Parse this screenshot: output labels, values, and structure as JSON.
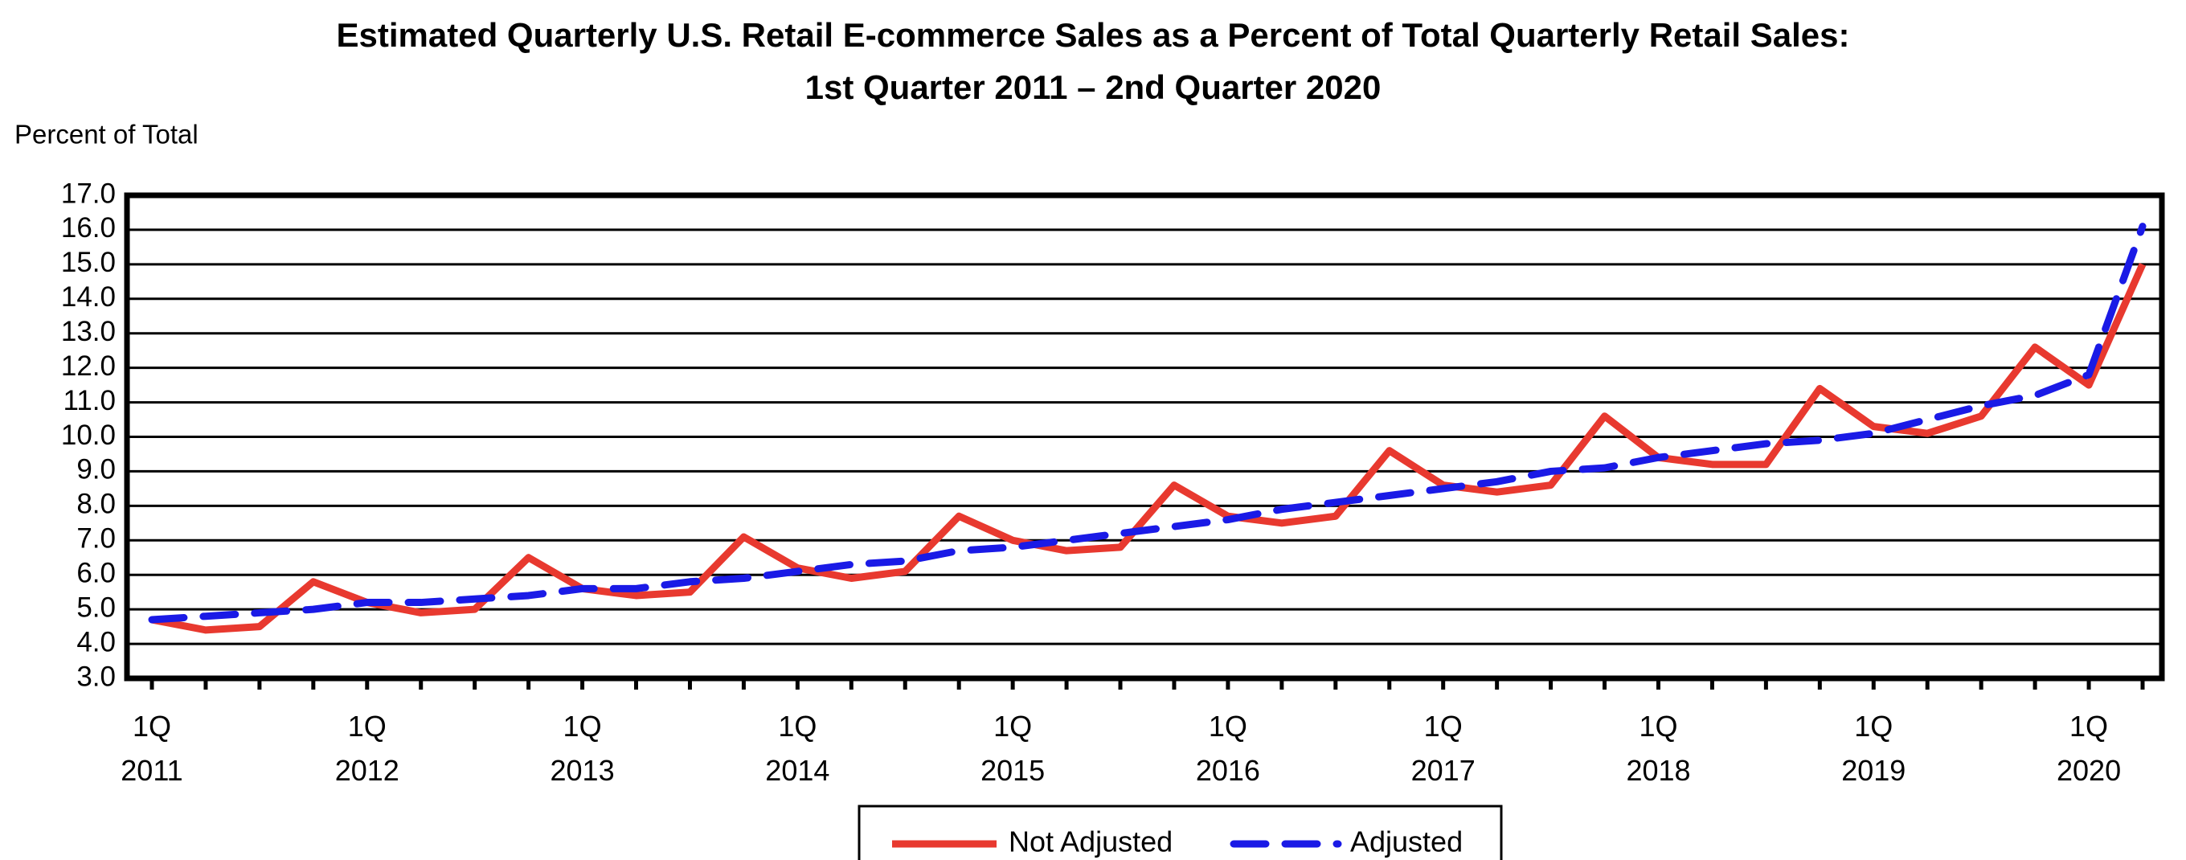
{
  "chart_data": {
    "type": "line",
    "title": "Estimated Quarterly U.S. Retail E-commerce Sales as a Percent of Total Quarterly Retail Sales:",
    "subtitle": "1st Quarter 2011 – 2nd Quarter 2020",
    "y_label": "Percent of Total",
    "categories": [
      "1Q 2011",
      null,
      null,
      null,
      "1Q 2012",
      null,
      null,
      null,
      "1Q 2013",
      null,
      null,
      null,
      "1Q 2014",
      null,
      null,
      null,
      "1Q 2015",
      null,
      null,
      null,
      "1Q 2016",
      null,
      null,
      null,
      "1Q 2017",
      null,
      null,
      null,
      "1Q 2018",
      null,
      null,
      null,
      "1Q 2019",
      null,
      null,
      null,
      "1Q 2020",
      null
    ],
    "series": [
      {
        "name": "Not Adjusted",
        "color": "#e8392f",
        "dashed": false,
        "values": [
          4.7,
          4.4,
          4.5,
          5.8,
          5.2,
          4.9,
          5.0,
          6.5,
          5.6,
          5.4,
          5.5,
          7.1,
          6.2,
          5.9,
          6.1,
          7.7,
          7.0,
          6.7,
          6.8,
          8.6,
          7.7,
          7.5,
          7.7,
          9.6,
          8.6,
          8.4,
          8.6,
          10.6,
          9.4,
          9.2,
          9.2,
          11.4,
          10.3,
          10.1,
          10.6,
          12.6,
          11.5,
          15.0
        ]
      },
      {
        "name": "Adjusted",
        "color": "#1a1ae6",
        "dashed": true,
        "values": [
          4.7,
          4.8,
          4.9,
          5.0,
          5.2,
          5.2,
          5.3,
          5.4,
          5.6,
          5.6,
          5.8,
          5.9,
          6.1,
          6.3,
          6.4,
          6.7,
          6.8,
          7.0,
          7.2,
          7.4,
          7.6,
          7.9,
          8.1,
          8.3,
          8.5,
          8.7,
          9.0,
          9.1,
          9.4,
          9.6,
          9.8,
          9.9,
          10.1,
          10.5,
          10.9,
          11.2,
          11.8,
          16.1
        ]
      }
    ],
    "ylim": [
      3,
      17
    ],
    "yticks": [
      {
        "value": 3,
        "label": "3.0"
      },
      {
        "value": 4,
        "label": "4.0"
      },
      {
        "value": 5,
        "label": "5.0"
      },
      {
        "value": 6,
        "label": "6.0"
      },
      {
        "value": 7,
        "label": "7.0"
      },
      {
        "value": 8,
        "label": "8.0"
      },
      {
        "value": 9,
        "label": "9.0"
      },
      {
        "value": 10,
        "label": "10.0"
      },
      {
        "value": 11,
        "label": "11.0"
      },
      {
        "value": 12,
        "label": "12.0"
      },
      {
        "value": 13,
        "label": "13.0"
      },
      {
        "value": 14,
        "label": "14.0"
      },
      {
        "value": 15,
        "label": "15.0"
      },
      {
        "value": 16,
        "label": "16.0"
      },
      {
        "value": 17,
        "label": "17.0"
      }
    ],
    "grid": true,
    "legend": "bottom"
  }
}
